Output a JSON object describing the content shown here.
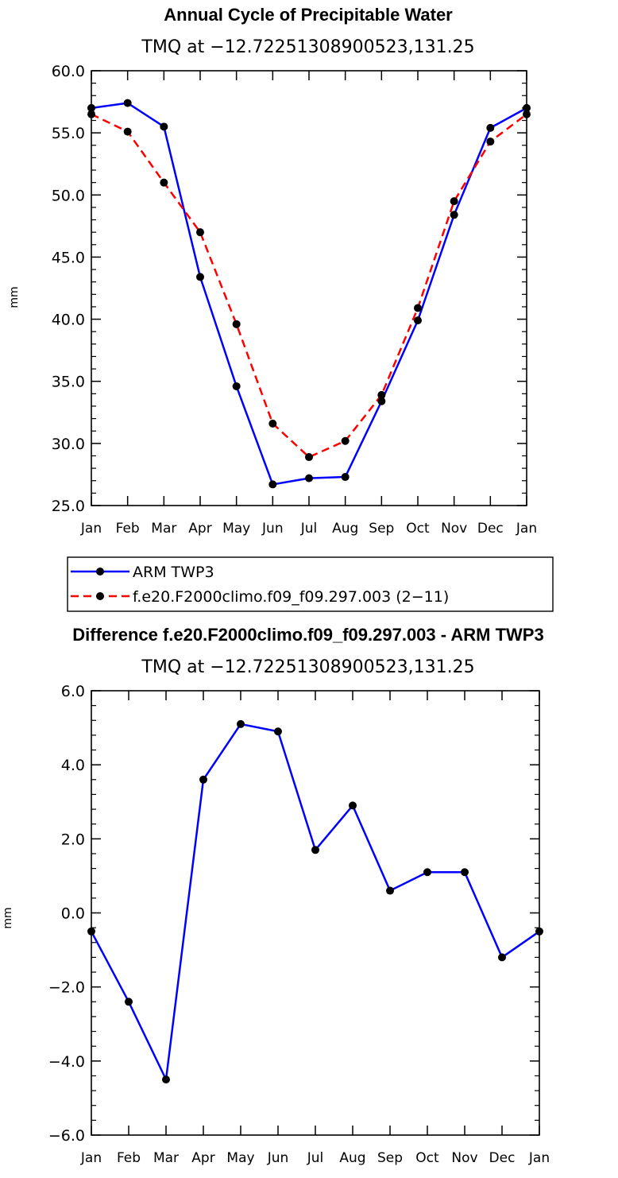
{
  "charts": [
    {
      "title": "Annual Cycle of Precipitable Water",
      "subtitle": "TMQ at −12.72251308900523,131.25",
      "ylabel": "mm",
      "categories": [
        "Jan",
        "Feb",
        "Mar",
        "Apr",
        "May",
        "Jun",
        "Jul",
        "Aug",
        "Sep",
        "Oct",
        "Nov",
        "Dec",
        "Jan"
      ],
      "ylim": [
        25.0,
        60.0
      ],
      "yticks": [
        "25.0",
        "30.0",
        "35.0",
        "40.0",
        "45.0",
        "50.0",
        "55.0",
        "60.0"
      ],
      "legend": [
        "ARM TWP3",
        "f.e20.F2000climo.f09_f09.297.003 (2−11)"
      ]
    },
    {
      "title": "Difference f.e20.F2000climo.f09_f09.297.003 - ARM TWP3",
      "subtitle": "TMQ at −12.72251308900523,131.25",
      "ylabel": "mm",
      "categories": [
        "Jan",
        "Feb",
        "Mar",
        "Apr",
        "May",
        "Jun",
        "Jul",
        "Aug",
        "Sep",
        "Oct",
        "Nov",
        "Dec",
        "Jan"
      ],
      "ylim": [
        -6.0,
        6.0
      ],
      "yticks": [
        "−6.0",
        "−4.0",
        "−2.0",
        "0.0",
        "2.0",
        "4.0",
        "6.0"
      ]
    }
  ],
  "chart_data": [
    {
      "type": "line",
      "title": "Annual Cycle of Precipitable Water",
      "subtitle": "TMQ at −12.72251308900523,131.25",
      "xlabel": "",
      "ylabel": "mm",
      "categories": [
        "Jan",
        "Feb",
        "Mar",
        "Apr",
        "May",
        "Jun",
        "Jul",
        "Aug",
        "Sep",
        "Oct",
        "Nov",
        "Dec",
        "Jan"
      ],
      "ylim": [
        25.0,
        60.0
      ],
      "legend_position": "below",
      "series": [
        {
          "name": "ARM TWP3",
          "color": "#0000ff",
          "dash": "solid",
          "values": [
            57.0,
            57.4,
            55.5,
            43.4,
            34.6,
            26.7,
            27.2,
            27.3,
            33.4,
            39.9,
            48.4,
            55.4,
            57.0
          ]
        },
        {
          "name": "f.e20.F2000climo.f09_f09.297.003 (2−11)",
          "color": "#ff0000",
          "dash": "dashed",
          "values": [
            56.5,
            55.1,
            51.0,
            47.0,
            39.6,
            31.6,
            28.9,
            30.2,
            33.9,
            40.9,
            49.5,
            54.3,
            56.5
          ]
        }
      ]
    },
    {
      "type": "line",
      "title": "Difference f.e20.F2000climo.f09_f09.297.003 - ARM TWP3",
      "subtitle": "TMQ at −12.72251308900523,131.25",
      "xlabel": "",
      "ylabel": "mm",
      "categories": [
        "Jan",
        "Feb",
        "Mar",
        "Apr",
        "May",
        "Jun",
        "Jul",
        "Aug",
        "Sep",
        "Oct",
        "Nov",
        "Dec",
        "Jan"
      ],
      "ylim": [
        -6.0,
        6.0
      ],
      "series": [
        {
          "name": "Difference",
          "color": "#0000ff",
          "dash": "solid",
          "values": [
            -0.5,
            -2.4,
            -4.5,
            3.6,
            5.1,
            4.9,
            1.7,
            2.9,
            0.6,
            1.1,
            1.1,
            -1.2,
            -0.5
          ]
        }
      ]
    }
  ]
}
